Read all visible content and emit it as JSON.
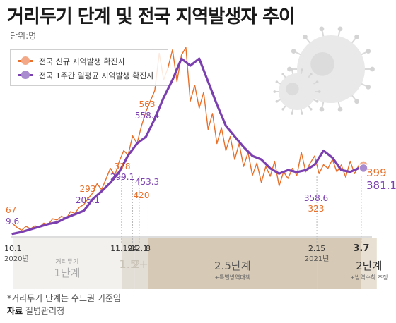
{
  "chart_data": {
    "type": "line",
    "title": "거리두기 단계 및 전국 지역발생자 추이",
    "unit_label": "단위:명",
    "series": [
      {
        "name": "전국 신규 지역발생 확진자",
        "color": "#e8702a",
        "x": [
          0,
          2,
          4,
          6,
          8,
          10,
          12,
          14,
          16,
          18,
          20,
          22,
          24,
          26,
          28,
          30,
          32,
          34,
          36,
          38,
          40,
          42,
          44,
          46,
          48,
          50,
          52,
          54,
          56,
          58,
          60,
          62,
          64,
          66,
          68,
          70,
          72,
          74,
          76,
          78,
          80,
          82,
          84,
          86,
          88,
          90,
          92,
          94,
          96,
          98,
          100,
          102,
          104,
          106,
          108,
          110,
          112,
          114,
          116,
          118,
          120,
          122,
          124,
          126,
          128,
          130,
          132,
          134,
          136,
          138,
          140,
          142,
          144,
          146,
          148,
          150,
          152,
          154,
          156,
          158
        ],
        "values": [
          67,
          45,
          30,
          52,
          38,
          55,
          48,
          70,
          62,
          95,
          88,
          110,
          92,
          135,
          125,
          160,
          175,
          210,
          240,
          293,
          260,
          318,
          380,
          340,
          420,
          480,
          455,
          563,
          520,
          620,
          700,
          760,
          820,
          1030,
          880,
          950,
          1050,
          870,
          1020,
          1062,
          760,
          850,
          720,
          810,
          600,
          690,
          520,
          610,
          480,
          560,
          430,
          520,
          390,
          470,
          340,
          410,
          300,
          390,
          335,
          420,
          280,
          360,
          323,
          380,
          340,
          470,
          360,
          410,
          450,
          350,
          400,
          380,
          430,
          360,
          399,
          330,
          420,
          350,
          399,
          399
        ],
        "start_label": "67",
        "end_label": "399",
        "labels": [
          "563",
          "318",
          "293",
          "420",
          "323"
        ]
      },
      {
        "name": "전국 1주간 일평균 지역발생 확진자",
        "color": "#7b3fb0",
        "x": [
          0,
          4,
          8,
          12,
          16,
          20,
          24,
          28,
          32,
          36,
          40,
          44,
          48,
          52,
          56,
          60,
          64,
          68,
          72,
          76,
          80,
          84,
          88,
          92,
          96,
          100,
          104,
          108,
          112,
          116,
          120,
          124,
          128,
          132,
          136,
          140,
          144,
          148,
          152,
          156,
          158
        ],
        "values": [
          9.6,
          20,
          35,
          50,
          65,
          75,
          100,
          120,
          140,
          205.1,
          250,
          299.1,
          360,
          453.3,
          520,
          558.4,
          660,
          780,
          880,
          1000,
          960,
          1000,
          870,
          740,
          620,
          560,
          500,
          450,
          430,
          380,
          350,
          370,
          358.6,
          370,
          400,
          480,
          440,
          370,
          360,
          381.1,
          381.1
        ],
        "start_label": "9.6",
        "end_label": "381.1",
        "labels": [
          "558.4",
          "299.1",
          "205.1",
          "453.3",
          "358.6"
        ]
      }
    ],
    "xlim": [
      0,
      158
    ],
    "ylim": [
      0,
      1100
    ],
    "date_labels": [
      {
        "x": 0,
        "text": "10.1",
        "sub": "2020년"
      },
      {
        "x": 49,
        "text": "11.19"
      },
      {
        "x": 54,
        "text": "24"
      },
      {
        "x": 57,
        "text": "12.1"
      },
      {
        "x": 61,
        "text": "8"
      },
      {
        "x": 137,
        "text": "2.15",
        "sub": "2021년"
      },
      {
        "x": 157,
        "text": "3.7"
      }
    ],
    "phases": [
      {
        "x0": 0,
        "x1": 49,
        "title": "거리두기",
        "label": "1단계",
        "sub": "",
        "color": "#f3f1ee"
      },
      {
        "x0": 49,
        "x1": 55,
        "title": "",
        "label": "1.5",
        "sub": "",
        "color": "#e2ddd5"
      },
      {
        "x0": 55,
        "x1": 57,
        "title": "",
        "label": "2",
        "sub": "",
        "color": "#e2ddd5"
      },
      {
        "x0": 57,
        "x1": 61,
        "title": "",
        "label": "2+α",
        "sub": "",
        "color": "#e2ddd5"
      },
      {
        "x0": 61,
        "x1": 137,
        "title": "",
        "label": "2.5단계",
        "sub": "+특별방역대책",
        "color": "#d6c9b5"
      },
      {
        "x0": 137,
        "x1": 157,
        "title": "",
        "label": "",
        "sub": "",
        "color": "#d6c9b5"
      },
      {
        "x0": 157,
        "x1": 164,
        "title": "",
        "label": "2단계",
        "sub": "+방역수칙 조정",
        "color": "#e8e0d3"
      }
    ]
  },
  "legend": {
    "items": [
      "전국 신규 지역발생 확진자",
      "전국 1주간 일평균 지역발생 확진자"
    ]
  },
  "footnote": "*거리두기 단계는 수도권 기준임",
  "source_label": "자료",
  "source_value": "질병관리청"
}
